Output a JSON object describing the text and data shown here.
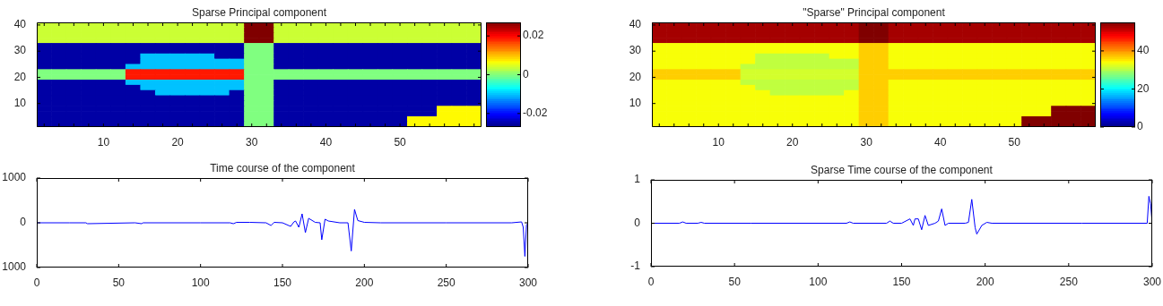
{
  "chart_data": [
    {
      "type": "heatmap",
      "title": "Sparse Principal component",
      "categories": [
        null,
        null,
        null,
        null,
        "10",
        null,
        null,
        null,
        null,
        "20",
        null,
        null,
        null,
        null,
        "30",
        null,
        null,
        null,
        null,
        "40",
        null,
        null,
        null,
        null,
        "50",
        null,
        null,
        null,
        null,
        null
      ],
      "y_categories": [
        "40",
        null,
        null,
        null,
        null,
        "30",
        null,
        null,
        null,
        null,
        "20",
        null,
        null,
        null,
        null,
        "10",
        null,
        null,
        null,
        null
      ],
      "cells": [
        [
          0.004,
          0.004,
          0.004,
          0.004,
          0.004,
          0.004,
          0.004,
          0.004,
          0.004,
          0.004,
          0.004,
          0.004,
          0.004,
          0.004,
          0.027,
          0.027,
          0.004,
          0.004,
          0.004,
          0.004,
          0.004,
          0.004,
          0.004,
          0.004,
          0.004,
          0.004,
          0.004,
          0.004,
          0.004,
          0.004
        ],
        [
          0.004,
          0.004,
          0.004,
          0.004,
          0.004,
          0.004,
          0.004,
          0.004,
          0.004,
          0.004,
          0.004,
          0.004,
          0.004,
          0.004,
          0.027,
          0.027,
          0.004,
          0.004,
          0.004,
          0.004,
          0.004,
          0.004,
          0.004,
          0.004,
          0.004,
          0.004,
          0.004,
          0.004,
          0.004,
          0.004
        ],
        [
          0.004,
          0.004,
          0.004,
          0.004,
          0.004,
          0.004,
          0.004,
          0.004,
          0.004,
          0.004,
          0.004,
          0.004,
          0.004,
          0.004,
          0.027,
          0.027,
          0.004,
          0.004,
          0.004,
          0.004,
          0.004,
          0.004,
          0.004,
          0.004,
          0.004,
          0.004,
          0.004,
          0.004,
          0.004,
          0.004
        ],
        [
          0.004,
          0.004,
          0.004,
          0.004,
          0.004,
          0.004,
          0.004,
          0.004,
          0.004,
          0.004,
          0.004,
          0.004,
          0.004,
          0.004,
          0.027,
          0.027,
          0.004,
          0.004,
          0.004,
          0.004,
          0.004,
          0.004,
          0.004,
          0.004,
          0.004,
          0.004,
          0.004,
          0.004,
          0.004,
          0.004
        ],
        [
          -0.025,
          -0.025,
          -0.025,
          -0.025,
          -0.025,
          -0.025,
          -0.025,
          -0.025,
          -0.025,
          -0.025,
          -0.025,
          -0.025,
          -0.025,
          -0.025,
          0,
          0,
          -0.025,
          -0.025,
          -0.025,
          -0.025,
          -0.025,
          -0.025,
          -0.025,
          -0.025,
          -0.025,
          -0.025,
          -0.025,
          -0.025,
          -0.025,
          -0.025
        ],
        [
          -0.025,
          -0.025,
          -0.025,
          -0.025,
          -0.025,
          -0.025,
          -0.025,
          -0.025,
          -0.025,
          -0.025,
          -0.025,
          -0.025,
          -0.025,
          -0.025,
          0,
          0,
          -0.025,
          -0.025,
          -0.025,
          -0.025,
          -0.025,
          -0.025,
          -0.025,
          -0.025,
          -0.025,
          -0.025,
          -0.025,
          -0.025,
          -0.025,
          -0.025
        ],
        [
          -0.025,
          -0.025,
          -0.025,
          -0.025,
          -0.025,
          -0.025,
          -0.025,
          -0.01,
          -0.01,
          -0.01,
          -0.01,
          -0.01,
          -0.025,
          -0.025,
          0,
          0,
          -0.025,
          -0.025,
          -0.025,
          -0.025,
          -0.025,
          -0.025,
          -0.025,
          -0.025,
          -0.025,
          -0.025,
          -0.025,
          -0.025,
          -0.025,
          -0.025
        ],
        [
          -0.025,
          -0.025,
          -0.025,
          -0.025,
          -0.025,
          -0.025,
          -0.025,
          -0.01,
          -0.01,
          -0.01,
          -0.01,
          -0.01,
          -0.01,
          -0.01,
          0,
          0,
          -0.025,
          -0.025,
          -0.025,
          -0.025,
          -0.025,
          -0.025,
          -0.025,
          -0.025,
          -0.025,
          -0.025,
          -0.025,
          -0.025,
          -0.025,
          -0.025
        ],
        [
          -0.025,
          -0.025,
          -0.025,
          -0.025,
          -0.025,
          -0.025,
          -0.01,
          -0.01,
          -0.01,
          -0.01,
          -0.01,
          -0.01,
          -0.01,
          -0.01,
          0,
          0,
          -0.025,
          -0.025,
          -0.025,
          -0.025,
          -0.025,
          -0.025,
          -0.025,
          -0.025,
          -0.025,
          -0.025,
          -0.025,
          -0.025,
          -0.025,
          -0.025
        ],
        [
          0,
          0,
          0,
          0,
          0,
          0,
          0.019,
          0.019,
          0.019,
          0.019,
          0.019,
          0.019,
          0.019,
          0.019,
          0,
          0,
          0,
          0,
          0,
          0,
          0,
          0,
          0,
          0,
          0,
          0,
          0,
          0,
          0,
          0
        ],
        [
          0,
          0,
          0,
          0,
          0,
          0,
          0.019,
          0.019,
          0.019,
          0.019,
          0.019,
          0.019,
          0.019,
          0.019,
          0,
          0,
          0,
          0,
          0,
          0,
          0,
          0,
          0,
          0,
          0,
          0,
          0,
          0,
          0,
          0
        ],
        [
          -0.025,
          -0.025,
          -0.025,
          -0.025,
          -0.025,
          -0.025,
          -0.01,
          -0.01,
          -0.01,
          -0.01,
          -0.01,
          -0.01,
          -0.01,
          -0.01,
          0,
          0,
          -0.025,
          -0.025,
          -0.025,
          -0.025,
          -0.025,
          -0.025,
          -0.025,
          -0.025,
          -0.025,
          -0.025,
          -0.025,
          -0.025,
          -0.025,
          -0.025
        ],
        [
          -0.025,
          -0.025,
          -0.025,
          -0.025,
          -0.025,
          -0.025,
          -0.025,
          -0.01,
          -0.01,
          -0.01,
          -0.01,
          -0.01,
          -0.01,
          -0.01,
          0,
          0,
          -0.025,
          -0.025,
          -0.025,
          -0.025,
          -0.025,
          -0.025,
          -0.025,
          -0.025,
          -0.025,
          -0.025,
          -0.025,
          -0.025,
          -0.025,
          -0.025
        ],
        [
          -0.025,
          -0.025,
          -0.025,
          -0.025,
          -0.025,
          -0.025,
          -0.025,
          -0.025,
          -0.01,
          -0.01,
          -0.01,
          -0.01,
          -0.01,
          -0.025,
          0,
          0,
          -0.025,
          -0.025,
          -0.025,
          -0.025,
          -0.025,
          -0.025,
          -0.025,
          -0.025,
          -0.025,
          -0.025,
          -0.025,
          -0.025,
          -0.025,
          -0.025
        ],
        [
          -0.025,
          -0.025,
          -0.025,
          -0.025,
          -0.025,
          -0.025,
          -0.025,
          -0.025,
          -0.025,
          -0.025,
          -0.025,
          -0.025,
          -0.025,
          -0.025,
          0,
          0,
          -0.025,
          -0.025,
          -0.025,
          -0.025,
          -0.025,
          -0.025,
          -0.025,
          -0.025,
          -0.025,
          -0.025,
          -0.025,
          -0.025,
          -0.025,
          -0.025
        ],
        [
          -0.025,
          -0.025,
          -0.025,
          -0.025,
          -0.025,
          -0.025,
          -0.025,
          -0.025,
          -0.025,
          -0.025,
          -0.025,
          -0.025,
          -0.025,
          -0.025,
          0,
          0,
          -0.025,
          -0.025,
          -0.025,
          -0.025,
          -0.025,
          -0.025,
          -0.025,
          -0.025,
          -0.025,
          -0.025,
          -0.025,
          -0.025,
          -0.025,
          -0.025
        ],
        [
          -0.025,
          -0.025,
          -0.025,
          -0.025,
          -0.025,
          -0.025,
          -0.025,
          -0.025,
          -0.025,
          -0.025,
          -0.025,
          -0.025,
          -0.025,
          -0.025,
          0,
          0,
          -0.025,
          -0.025,
          -0.025,
          -0.025,
          -0.025,
          -0.025,
          -0.025,
          -0.025,
          -0.025,
          -0.025,
          -0.025,
          0.007,
          0.007,
          0.007
        ],
        [
          -0.025,
          -0.025,
          -0.025,
          -0.025,
          -0.025,
          -0.025,
          -0.025,
          -0.025,
          -0.025,
          -0.025,
          -0.025,
          -0.025,
          -0.025,
          -0.025,
          0,
          0,
          -0.025,
          -0.025,
          -0.025,
          -0.025,
          -0.025,
          -0.025,
          -0.025,
          -0.025,
          -0.025,
          -0.025,
          -0.025,
          0.007,
          0.007,
          0.007
        ],
        [
          -0.025,
          -0.025,
          -0.025,
          -0.025,
          -0.025,
          -0.025,
          -0.025,
          -0.025,
          -0.025,
          -0.025,
          -0.025,
          -0.025,
          -0.025,
          -0.025,
          0,
          0,
          -0.025,
          -0.025,
          -0.025,
          -0.025,
          -0.025,
          -0.025,
          -0.025,
          -0.025,
          -0.025,
          0.007,
          0.007,
          0.007,
          0.007,
          0.007
        ],
        [
          -0.025,
          -0.025,
          -0.025,
          -0.025,
          -0.025,
          -0.025,
          -0.025,
          -0.025,
          -0.025,
          -0.025,
          -0.025,
          -0.025,
          -0.025,
          -0.025,
          0,
          0,
          -0.025,
          -0.025,
          -0.025,
          -0.025,
          -0.025,
          -0.025,
          -0.025,
          -0.025,
          -0.025,
          0.007,
          0.007,
          0.007,
          0.007,
          0.007
        ]
      ],
      "clim": [
        -0.027,
        0.027
      ],
      "cticks": [
        -0.02,
        0,
        0.02
      ]
    },
    {
      "type": "heatmap",
      "title": "\"Sparse\" Principal component",
      "categories": [
        null,
        null,
        null,
        null,
        "10",
        null,
        null,
        null,
        null,
        "20",
        null,
        null,
        null,
        null,
        "30",
        null,
        null,
        null,
        null,
        "40",
        null,
        null,
        null,
        null,
        "50",
        null,
        null,
        null,
        null,
        null
      ],
      "y_categories": [
        "40",
        null,
        null,
        null,
        null,
        "30",
        null,
        null,
        null,
        null,
        "20",
        null,
        null,
        null,
        null,
        "10",
        null,
        null,
        null,
        null
      ],
      "cells": [
        [
          53,
          53,
          53,
          53,
          53,
          53,
          53,
          53,
          53,
          53,
          53,
          53,
          53,
          53,
          55,
          55,
          53,
          53,
          53,
          53,
          53,
          53,
          53,
          53,
          53,
          53,
          53,
          53,
          53,
          53
        ],
        [
          53,
          53,
          53,
          53,
          53,
          53,
          53,
          53,
          53,
          53,
          53,
          53,
          53,
          53,
          55,
          55,
          53,
          53,
          53,
          53,
          53,
          53,
          53,
          53,
          53,
          53,
          53,
          53,
          53,
          53
        ],
        [
          53,
          53,
          53,
          53,
          53,
          53,
          53,
          53,
          53,
          53,
          53,
          53,
          53,
          53,
          55,
          55,
          53,
          53,
          53,
          53,
          53,
          53,
          53,
          53,
          53,
          53,
          53,
          53,
          53,
          53
        ],
        [
          53,
          53,
          53,
          53,
          53,
          53,
          53,
          53,
          53,
          53,
          53,
          53,
          53,
          53,
          55,
          55,
          53,
          53,
          53,
          53,
          53,
          53,
          53,
          53,
          53,
          53,
          53,
          53,
          53,
          53
        ],
        [
          34,
          34,
          34,
          34,
          34,
          34,
          34,
          34,
          34,
          34,
          34,
          34,
          34,
          34,
          37,
          37,
          34,
          34,
          34,
          34,
          34,
          34,
          34,
          34,
          34,
          34,
          34,
          34,
          34,
          34
        ],
        [
          34,
          34,
          34,
          34,
          34,
          34,
          34,
          34,
          34,
          34,
          34,
          34,
          34,
          34,
          37,
          37,
          34,
          34,
          34,
          34,
          34,
          34,
          34,
          34,
          34,
          34,
          34,
          34,
          34,
          34
        ],
        [
          34,
          34,
          34,
          34,
          34,
          34,
          34,
          31,
          31,
          31,
          31,
          31,
          34,
          34,
          37,
          37,
          34,
          34,
          34,
          34,
          34,
          34,
          34,
          34,
          34,
          34,
          34,
          34,
          34,
          34
        ],
        [
          34,
          34,
          34,
          34,
          34,
          34,
          34,
          31,
          31,
          31,
          31,
          31,
          31,
          31,
          37,
          37,
          34,
          34,
          34,
          34,
          34,
          34,
          34,
          34,
          34,
          34,
          34,
          34,
          34,
          34
        ],
        [
          34,
          34,
          34,
          34,
          34,
          34,
          31,
          31,
          31,
          31,
          31,
          31,
          31,
          31,
          37,
          37,
          34,
          34,
          34,
          34,
          34,
          34,
          34,
          34,
          34,
          34,
          34,
          34,
          34,
          34
        ],
        [
          37,
          37,
          37,
          37,
          37,
          37,
          32,
          32,
          32,
          32,
          32,
          32,
          32,
          32,
          37,
          37,
          37,
          37,
          37,
          37,
          37,
          37,
          37,
          37,
          37,
          37,
          37,
          37,
          37,
          37
        ],
        [
          37,
          37,
          37,
          37,
          37,
          37,
          32,
          32,
          32,
          32,
          32,
          32,
          32,
          32,
          37,
          37,
          37,
          37,
          37,
          37,
          37,
          37,
          37,
          37,
          37,
          37,
          37,
          37,
          37,
          37
        ],
        [
          34,
          34,
          34,
          34,
          34,
          34,
          31,
          31,
          31,
          31,
          31,
          31,
          31,
          31,
          37,
          37,
          34,
          34,
          34,
          34,
          34,
          34,
          34,
          34,
          34,
          34,
          34,
          34,
          34,
          34
        ],
        [
          34,
          34,
          34,
          34,
          34,
          34,
          34,
          31,
          31,
          31,
          31,
          31,
          31,
          31,
          37,
          37,
          34,
          34,
          34,
          34,
          34,
          34,
          34,
          34,
          34,
          34,
          34,
          34,
          34,
          34
        ],
        [
          34,
          34,
          34,
          34,
          34,
          34,
          34,
          34,
          31,
          31,
          31,
          31,
          31,
          34,
          37,
          37,
          34,
          34,
          34,
          34,
          34,
          34,
          34,
          34,
          34,
          34,
          34,
          34,
          34,
          34
        ],
        [
          34,
          34,
          34,
          34,
          34,
          34,
          34,
          34,
          34,
          34,
          34,
          34,
          34,
          34,
          37,
          37,
          34,
          34,
          34,
          34,
          34,
          34,
          34,
          34,
          34,
          34,
          34,
          34,
          34,
          34
        ],
        [
          34,
          34,
          34,
          34,
          34,
          34,
          34,
          34,
          34,
          34,
          34,
          34,
          34,
          34,
          37,
          37,
          34,
          34,
          34,
          34,
          34,
          34,
          34,
          34,
          34,
          34,
          34,
          34,
          34,
          34
        ],
        [
          34,
          34,
          34,
          34,
          34,
          34,
          34,
          34,
          34,
          34,
          34,
          34,
          34,
          34,
          37,
          37,
          34,
          34,
          34,
          34,
          34,
          34,
          34,
          34,
          34,
          34,
          34,
          55,
          55,
          55
        ],
        [
          34,
          34,
          34,
          34,
          34,
          34,
          34,
          34,
          34,
          34,
          34,
          34,
          34,
          34,
          37,
          37,
          34,
          34,
          34,
          34,
          34,
          34,
          34,
          34,
          34,
          34,
          34,
          55,
          55,
          55
        ],
        [
          34,
          34,
          34,
          34,
          34,
          34,
          34,
          34,
          34,
          34,
          34,
          34,
          34,
          34,
          37,
          37,
          34,
          34,
          34,
          34,
          34,
          34,
          34,
          34,
          34,
          55,
          55,
          55,
          55,
          55
        ],
        [
          34,
          34,
          34,
          34,
          34,
          34,
          34,
          34,
          34,
          34,
          34,
          34,
          34,
          34,
          37,
          37,
          34,
          34,
          34,
          34,
          34,
          34,
          34,
          34,
          34,
          55,
          55,
          55,
          55,
          55
        ]
      ],
      "clim": [
        0,
        55
      ],
      "cticks": [
        0,
        20,
        40
      ]
    },
    {
      "type": "line",
      "title": "Time course of the component",
      "x": [
        0,
        20,
        30,
        31,
        60,
        64,
        65,
        100,
        118,
        120,
        122,
        130,
        140,
        143,
        145,
        150,
        155,
        157,
        158,
        160,
        162,
        164,
        166,
        170,
        173,
        174,
        176,
        178,
        185,
        190,
        192,
        194,
        196,
        200,
        210,
        250,
        290,
        296,
        297,
        298,
        299,
        300
      ],
      "series": [
        {
          "color": "#0000ff",
          "values": [
            0,
            0,
            0,
            -20,
            0,
            -20,
            0,
            0,
            0,
            -20,
            10,
            10,
            0,
            -60,
            10,
            0,
            -80,
            20,
            40,
            -100,
            200,
            -220,
            100,
            10,
            0,
            -380,
            80,
            40,
            0,
            0,
            -630,
            300,
            50,
            10,
            0,
            0,
            0,
            20,
            -100,
            -750,
            -50,
            0
          ]
        }
      ],
      "xlim": [
        0,
        300
      ],
      "xticks": [
        0,
        50,
        100,
        150,
        200,
        250,
        300
      ],
      "ylim": [
        -1000,
        1000
      ],
      "yticks": [
        {
          "value": -1000,
          "label": "1000"
        },
        0,
        1000
      ]
    },
    {
      "type": "line",
      "title": "Sparse Time course of the component",
      "x": [
        0,
        17,
        19,
        21,
        28,
        30,
        32,
        60,
        117,
        119,
        121,
        141,
        143,
        145,
        150,
        155,
        157,
        158,
        160,
        162,
        164,
        166,
        170,
        172,
        174,
        176,
        178,
        188,
        190,
        192,
        194,
        195,
        198,
        201,
        204,
        258,
        297,
        298,
        299,
        300
      ],
      "series": [
        {
          "color": "#0000ff",
          "values": [
            0,
            0,
            0.03,
            0,
            0,
            0.02,
            0,
            0,
            0,
            0.03,
            0,
            0,
            0.05,
            0,
            0,
            0.1,
            -0.05,
            0.1,
            0.1,
            -0.15,
            0.18,
            -0.05,
            0,
            0.05,
            0.33,
            -0.05,
            0,
            0,
            0.02,
            0.55,
            -0.1,
            -0.25,
            -0.05,
            0.02,
            0,
            0,
            0,
            0.62,
            0.45,
            0
          ]
        }
      ],
      "xlim": [
        0,
        300
      ],
      "xticks": [
        0,
        50,
        100,
        150,
        200,
        250,
        300
      ],
      "ylim": [
        -1,
        1
      ],
      "yticks": [
        -1,
        0,
        1
      ]
    }
  ]
}
